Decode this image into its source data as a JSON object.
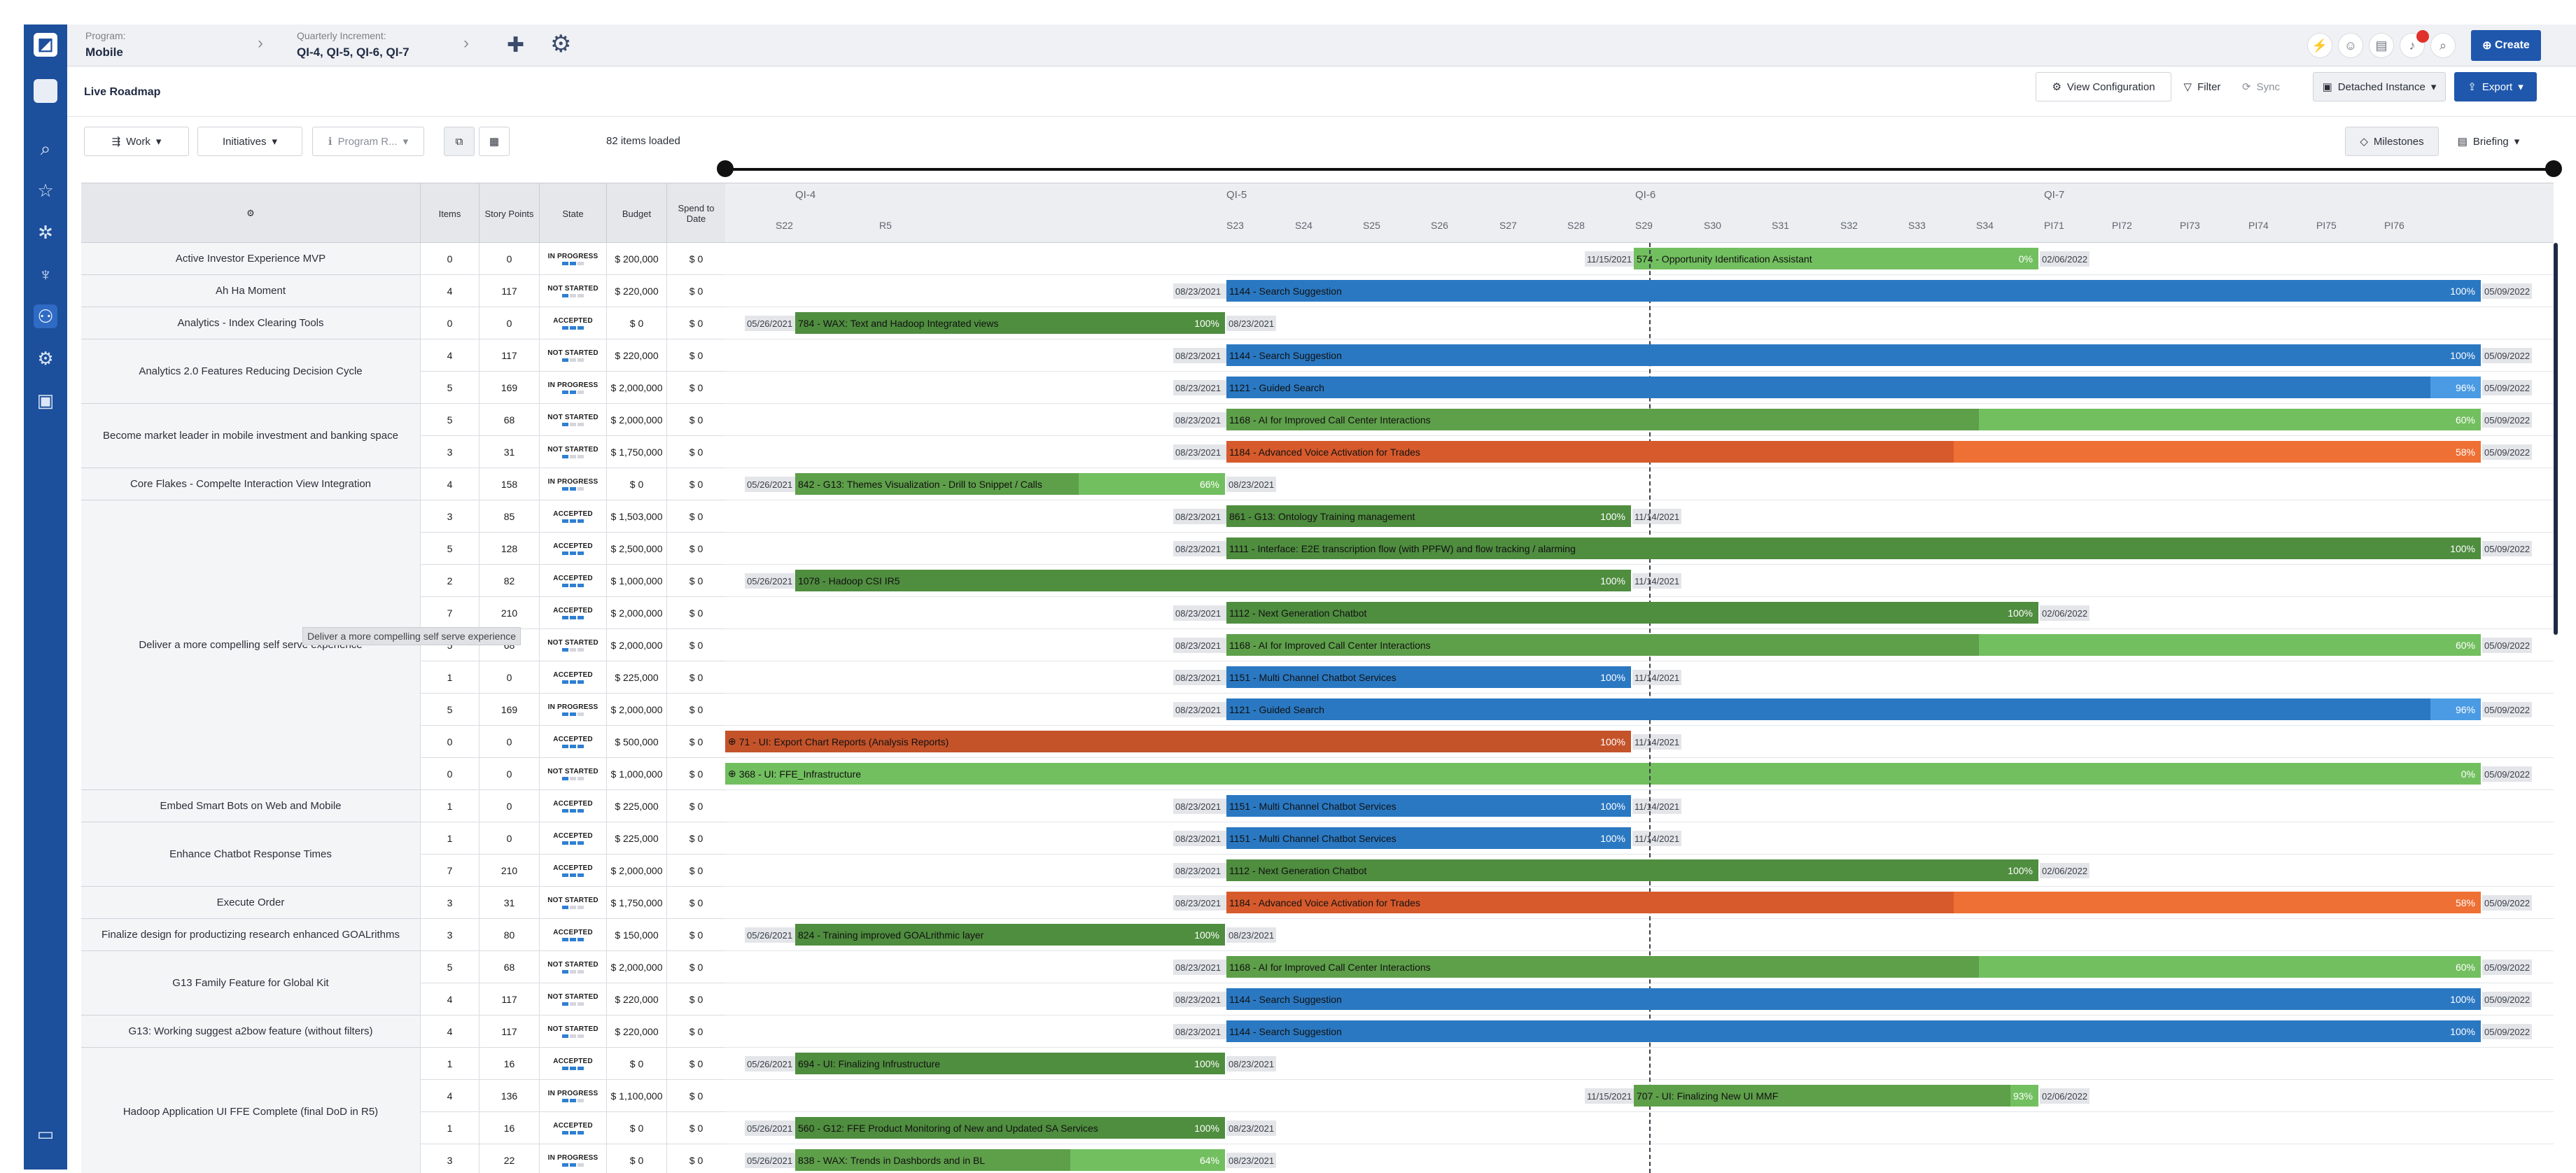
{
  "header": {
    "program_label": "Program:",
    "program_value": "Mobile",
    "increment_label": "Quarterly Increment:",
    "increment_value": "QI-4, QI-5, QI-6, QI-7",
    "create_label": "Create",
    "notification_count": ""
  },
  "subbar": {
    "page_title": "Live Roadmap",
    "view_config": "View Configuration",
    "filter": "Filter",
    "sync": "Sync",
    "detached": "Detached Instance",
    "export": "Export"
  },
  "toolbar": {
    "work": "Work",
    "initiatives": "Initiatives",
    "program_r": "Program R...",
    "items_loaded": "82 items loaded",
    "milestones": "Milestones",
    "briefing": "Briefing"
  },
  "columns": {
    "items": "Items",
    "story_points": "Story Points",
    "state": "State",
    "budget": "Budget",
    "spend": "Spend to Date"
  },
  "timeline": {
    "qis": [
      "QI-4",
      "QI-5",
      "QI-6",
      "QI-7"
    ],
    "sprints": [
      "S22",
      "R5",
      "S23",
      "S24",
      "S25",
      "S26",
      "S27",
      "S28",
      "S29",
      "S30",
      "S31",
      "S32",
      "S33",
      "S34",
      "PI71",
      "PI72",
      "PI73",
      "PI74",
      "PI75",
      "PI76"
    ]
  },
  "tooltip": "Deliver a more compelling self serve experience",
  "epics": [
    {
      "name": "Active Investor Experience MVP",
      "rows": 1
    },
    {
      "name": "Ah Ha Moment",
      "rows": 1
    },
    {
      "name": "Analytics - Index Clearing Tools",
      "rows": 1
    },
    {
      "name": "Analytics 2.0 Features Reducing Decision Cycle",
      "rows": 2
    },
    {
      "name": "Become market leader in mobile investment and banking space",
      "rows": 2
    },
    {
      "name": "Core Flakes - Compelte Interaction View Integration",
      "rows": 1
    },
    {
      "name": "Deliver a more compelling self serve experience",
      "rows": 9
    },
    {
      "name": "Embed Smart Bots on Web and Mobile",
      "rows": 1
    },
    {
      "name": "Enhance Chatbot Response Times",
      "rows": 2
    },
    {
      "name": "Execute Order",
      "rows": 1
    },
    {
      "name": "Finalize design for productizing research enhanced GOALrithms",
      "rows": 1
    },
    {
      "name": "G13 Family Feature for Global Kit",
      "rows": 2
    },
    {
      "name": "G13: Working suggest a2bow feature (without filters)",
      "rows": 1
    },
    {
      "name": "Hadoop Application UI FFE Complete (final DoD in R5)",
      "rows": 4
    }
  ],
  "rows": [
    {
      "items": "0",
      "sp": "0",
      "state": "IN PROGRESS",
      "segs": 2,
      "budget": "$ 200,000",
      "spend": "$ 0",
      "bar": {
        "label": "574 - Opportunity Identification Assistant",
        "pct": "0%",
        "start": "11/15/2021",
        "end": "02/06/2022",
        "color": "#72bf5f",
        "fill": 0
      }
    },
    {
      "items": "4",
      "sp": "117",
      "state": "NOT STARTED",
      "segs": 1,
      "budget": "$ 220,000",
      "spend": "$ 0",
      "bar": {
        "label": "1144 - Search Suggestion",
        "pct": "100%",
        "start": "08/23/2021",
        "end": "05/09/2022",
        "color": "#2a78c2",
        "fill": 1
      }
    },
    {
      "items": "0",
      "sp": "0",
      "state": "ACCEPTED",
      "segs": 3,
      "budget": "$ 0",
      "spend": "$ 0",
      "bar": {
        "label": "784 - WAX: Text and Hadoop Integrated views",
        "pct": "100%",
        "start": "05/26/2021",
        "end": "08/23/2021",
        "color": "#4f8d3f",
        "fill": 1
      }
    },
    {
      "items": "4",
      "sp": "117",
      "state": "NOT STARTED",
      "segs": 1,
      "budget": "$ 220,000",
      "spend": "$ 0",
      "bar": {
        "label": "1144 - Search Suggestion",
        "pct": "100%",
        "start": "08/23/2021",
        "end": "05/09/2022",
        "color": "#2a78c2",
        "fill": 1
      }
    },
    {
      "items": "5",
      "sp": "169",
      "state": "IN PROGRESS",
      "segs": 2,
      "budget": "$ 2,000,000",
      "spend": "$ 0",
      "bar": {
        "label": "1121 - Guided Search",
        "pct": "96%",
        "start": "08/23/2021",
        "end": "05/09/2022",
        "color": "#2a78c2",
        "fill": 0.96
      }
    },
    {
      "items": "5",
      "sp": "68",
      "state": "NOT STARTED",
      "segs": 1,
      "budget": "$ 2,000,000",
      "spend": "$ 0",
      "bar": {
        "label": "1168 - AI for Improved Call Center Interactions",
        "pct": "60%",
        "start": "08/23/2021",
        "end": "05/09/2022",
        "color": "#5e9f4a",
        "fill": 0.6
      }
    },
    {
      "items": "3",
      "sp": "31",
      "state": "NOT STARTED",
      "segs": 1,
      "budget": "$ 1,750,000",
      "spend": "$ 0",
      "bar": {
        "label": "1184 - Advanced Voice Activation for Trades",
        "pct": "58%",
        "start": "08/23/2021",
        "end": "05/09/2022",
        "color": "#d75a2c",
        "fill": 0.58
      }
    },
    {
      "items": "4",
      "sp": "158",
      "state": "IN PROGRESS",
      "segs": 2,
      "budget": "$ 0",
      "spend": "$ 0",
      "bar": {
        "label": "842 - G13: Themes Visualization - Drill to Snippet / Calls",
        "pct": "66%",
        "start": "05/26/2021",
        "end": "08/23/2021",
        "color": "#5e9f4a",
        "fill": 0.66
      }
    },
    {
      "items": "3",
      "sp": "85",
      "state": "ACCEPTED",
      "segs": 3,
      "budget": "$ 1,503,000",
      "spend": "$ 0",
      "bar": {
        "label": "861 - G13: Ontology Training management",
        "pct": "100%",
        "start": "08/23/2021",
        "end": "11/14/2021",
        "color": "#4f8d3f",
        "fill": 1
      }
    },
    {
      "items": "5",
      "sp": "128",
      "state": "ACCEPTED",
      "segs": 3,
      "budget": "$ 2,500,000",
      "spend": "$ 0",
      "bar": {
        "label": "1111 - Interface: E2E transcription flow (with PPFW) and flow tracking / alarming",
        "pct": "100%",
        "start": "08/23/2021",
        "end": "05/09/2022",
        "color": "#4f8d3f",
        "fill": 1
      }
    },
    {
      "items": "2",
      "sp": "82",
      "state": "ACCEPTED",
      "segs": 3,
      "budget": "$ 1,000,000",
      "spend": "$ 0",
      "bar": {
        "label": "1078 - Hadoop CSI IR5",
        "pct": "100%",
        "start": "05/26/2021",
        "end": "11/14/2021",
        "color": "#4f8d3f",
        "fill": 1
      }
    },
    {
      "items": "7",
      "sp": "210",
      "state": "ACCEPTED",
      "segs": 3,
      "budget": "$ 2,000,000",
      "spend": "$ 0",
      "bar": {
        "label": "1112 - Next Generation Chatbot",
        "pct": "100%",
        "start": "08/23/2021",
        "end": "02/06/2022",
        "color": "#4f8d3f",
        "fill": 1
      }
    },
    {
      "items": "5",
      "sp": "68",
      "state": "NOT STARTED",
      "segs": 1,
      "budget": "$ 2,000,000",
      "spend": "$ 0",
      "bar": {
        "label": "1168 - AI for Improved Call Center Interactions",
        "pct": "60%",
        "start": "08/23/2021",
        "end": "05/09/2022",
        "color": "#5e9f4a",
        "fill": 0.6
      }
    },
    {
      "items": "1",
      "sp": "0",
      "state": "ACCEPTED",
      "segs": 3,
      "budget": "$ 225,000",
      "spend": "$ 0",
      "bar": {
        "label": "1151 - Multi Channel Chatbot Services",
        "pct": "100%",
        "start": "08/23/2021",
        "end": "11/14/2021",
        "color": "#2a78c2",
        "fill": 1
      }
    },
    {
      "items": "5",
      "sp": "169",
      "state": "IN PROGRESS",
      "segs": 2,
      "budget": "$ 2,000,000",
      "spend": "$ 0",
      "bar": {
        "label": "1121 - Guided Search",
        "pct": "96%",
        "start": "08/23/2021",
        "end": "05/09/2022",
        "color": "#2a78c2",
        "fill": 0.96
      }
    },
    {
      "items": "0",
      "sp": "0",
      "state": "ACCEPTED",
      "segs": 3,
      "budget": "$ 500,000",
      "spend": "$ 0",
      "bar": {
        "label": "71 - UI: Export Chart Reports (Analysis Reports)",
        "pct": "100%",
        "start": "",
        "end": "11/14/2021",
        "color": "#c4532a",
        "fill": 1,
        "dot": true
      }
    },
    {
      "items": "0",
      "sp": "0",
      "state": "NOT STARTED",
      "segs": 1,
      "budget": "$ 1,000,000",
      "spend": "$ 0",
      "bar": {
        "label": "368 - UI: FFE_Infrastructure",
        "pct": "0%",
        "start": "",
        "end": "05/09/2022",
        "color": "#72bf5f",
        "fill": 0,
        "dot": true
      }
    },
    {
      "items": "1",
      "sp": "0",
      "state": "ACCEPTED",
      "segs": 3,
      "budget": "$ 225,000",
      "spend": "$ 0",
      "bar": {
        "label": "1151 - Multi Channel Chatbot Services",
        "pct": "100%",
        "start": "08/23/2021",
        "end": "11/14/2021",
        "color": "#2a78c2",
        "fill": 1
      }
    },
    {
      "items": "1",
      "sp": "0",
      "state": "ACCEPTED",
      "segs": 3,
      "budget": "$ 225,000",
      "spend": "$ 0",
      "bar": {
        "label": "1151 - Multi Channel Chatbot Services",
        "pct": "100%",
        "start": "08/23/2021",
        "end": "11/14/2021",
        "color": "#2a78c2",
        "fill": 1
      }
    },
    {
      "items": "7",
      "sp": "210",
      "state": "ACCEPTED",
      "segs": 3,
      "budget": "$ 2,000,000",
      "spend": "$ 0",
      "bar": {
        "label": "1112 - Next Generation Chatbot",
        "pct": "100%",
        "start": "08/23/2021",
        "end": "02/06/2022",
        "color": "#4f8d3f",
        "fill": 1
      }
    },
    {
      "items": "3",
      "sp": "31",
      "state": "NOT STARTED",
      "segs": 1,
      "budget": "$ 1,750,000",
      "spend": "$ 0",
      "bar": {
        "label": "1184 - Advanced Voice Activation for Trades",
        "pct": "58%",
        "start": "08/23/2021",
        "end": "05/09/2022",
        "color": "#d75a2c",
        "fill": 0.58
      }
    },
    {
      "items": "3",
      "sp": "80",
      "state": "ACCEPTED",
      "segs": 3,
      "budget": "$ 150,000",
      "spend": "$ 0",
      "bar": {
        "label": "824 - Training improved GOALrithmic layer",
        "pct": "100%",
        "start": "05/26/2021",
        "end": "08/23/2021",
        "color": "#4f8d3f",
        "fill": 1
      }
    },
    {
      "items": "5",
      "sp": "68",
      "state": "NOT STARTED",
      "segs": 1,
      "budget": "$ 2,000,000",
      "spend": "$ 0",
      "bar": {
        "label": "1168 - AI for Improved Call Center Interactions",
        "pct": "60%",
        "start": "08/23/2021",
        "end": "05/09/2022",
        "color": "#5e9f4a",
        "fill": 0.6
      }
    },
    {
      "items": "4",
      "sp": "117",
      "state": "NOT STARTED",
      "segs": 1,
      "budget": "$ 220,000",
      "spend": "$ 0",
      "bar": {
        "label": "1144 - Search Suggestion",
        "pct": "100%",
        "start": "08/23/2021",
        "end": "05/09/2022",
        "color": "#2a78c2",
        "fill": 1
      }
    },
    {
      "items": "4",
      "sp": "117",
      "state": "NOT STARTED",
      "segs": 1,
      "budget": "$ 220,000",
      "spend": "$ 0",
      "bar": {
        "label": "1144 - Search Suggestion",
        "pct": "100%",
        "start": "08/23/2021",
        "end": "05/09/2022",
        "color": "#2a78c2",
        "fill": 1
      }
    },
    {
      "items": "1",
      "sp": "16",
      "state": "ACCEPTED",
      "segs": 3,
      "budget": "$ 0",
      "spend": "$ 0",
      "bar": {
        "label": "694 - UI: Finalizing Infrustructure",
        "pct": "100%",
        "start": "05/26/2021",
        "end": "08/23/2021",
        "color": "#4f8d3f",
        "fill": 1
      }
    },
    {
      "items": "4",
      "sp": "136",
      "state": "IN PROGRESS",
      "segs": 2,
      "budget": "$ 1,100,000",
      "spend": "$ 0",
      "bar": {
        "label": "707 - UI: Finalizing New UI MMF",
        "pct": "93%",
        "start": "11/15/2021",
        "end": "02/06/2022",
        "color": "#5e9f4a",
        "fill": 0.93
      }
    },
    {
      "items": "1",
      "sp": "16",
      "state": "ACCEPTED",
      "segs": 3,
      "budget": "$ 0",
      "spend": "$ 0",
      "bar": {
        "label": "560 - G12: FFE Product Monitoring of New and Updated SA Services",
        "pct": "100%",
        "start": "05/26/2021",
        "end": "08/23/2021",
        "color": "#4f8d3f",
        "fill": 1
      }
    },
    {
      "items": "3",
      "sp": "22",
      "state": "IN PROGRESS",
      "segs": 2,
      "budget": "$ 0",
      "spend": "$ 0",
      "bar": {
        "label": "838 - WAX: Trends in Dashbords and in BL",
        "pct": "64%",
        "start": "05/26/2021",
        "end": "08/23/2021",
        "color": "#5e9f4a",
        "fill": 0.64
      }
    }
  ]
}
